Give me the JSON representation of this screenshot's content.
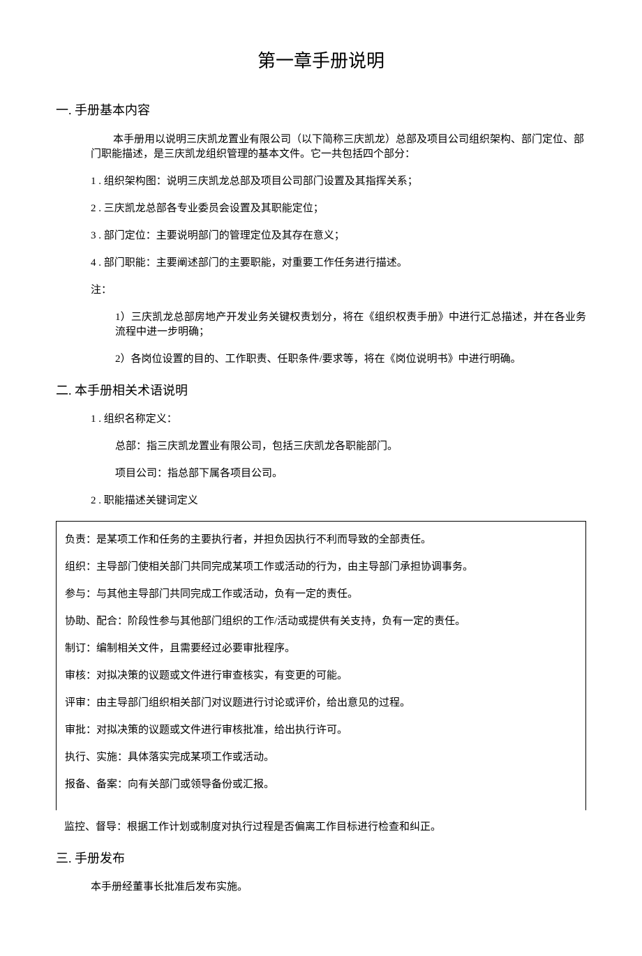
{
  "chapter_title": "第一章手册说明",
  "section1": {
    "heading": "一. 手册基本内容",
    "intro": "本手册用以说明三庆凯龙置业有限公司（以下简称三庆凯龙）总部及项目公司组织架构、部门定位、部门职能描述，是三庆凯龙组织管理的基本文件。它一共包括四个部分：",
    "items": [
      "1 . 组织架构图：说明三庆凯龙总部及项目公司部门设置及其指挥关系；",
      "2 . 三庆凯龙总部各专业委员会设置及其职能定位；",
      "3  . 部门定位：主要说明部门的管理定位及其存在意义；",
      "4  . 部门职能：主要阐述部门的主要职能，对重要工作任务进行描述。"
    ],
    "note_label": "注：",
    "notes": [
      "1）三庆凯龙总部房地产开发业务关键权责划分，将在《组织权责手册》中进行汇总描述，并在各业务流程中进一步明确；",
      "2）各岗位设置的目的、工作职责、任职条件/要求等，将在《岗位说明书》中进行明确。"
    ]
  },
  "section2": {
    "heading": "二. 本手册相关术语说明",
    "item1": "1  . 组织名称定义：",
    "def1a": "总部：指三庆凯龙置业有限公司，包括三庆凯龙各职能部门。",
    "def1b": "项目公司：指总部下属各项目公司。",
    "item2": "2  . 职能描述关键词定义",
    "definitions": [
      "负责：是某项工作和任务的主要执行者，并担负因执行不利而导致的全部责任。",
      "组织：主导部门使相关部门共同完成某项工作或活动的行为，由主导部门承担协调事务。",
      "参与：与其他主导部门共同完成工作或活动，负有一定的责任。",
      "协助、配合：阶段性参与其他部门组织的工作/活动或提供有关支持，负有一定的责任。",
      "制订：编制相关文件，且需要经过必要审批程序。",
      "审核：对拟决策的议题或文件进行审查核实，有变更的可能。",
      "评审：由主导部门组织相关部门对议题进行讨论或评价，给出意见的过程。",
      "审批：对拟决策的议题或文件进行审核批准，给出执行许可。",
      "执行、实施：具体落实完成某项工作或活动。",
      "报备、备案：向有关部门或领导备份或汇报。"
    ],
    "outside_def": "监控、督导：根据工作计划或制度对执行过程是否偏离工作目标进行检查和纠正。"
  },
  "section3": {
    "heading": "三. 手册发布",
    "body": "本手册经董事长批准后发布实施。"
  }
}
